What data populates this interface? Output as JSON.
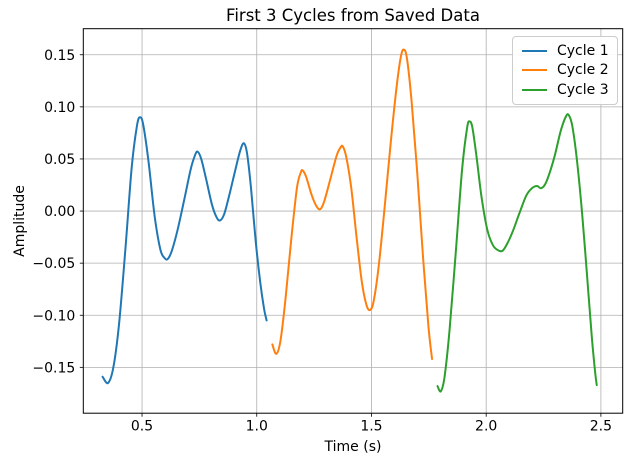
{
  "chart_data": {
    "type": "line",
    "title": "First 3 Cycles from Saved Data",
    "xlabel": "Time (s)",
    "ylabel": "Amplitude",
    "xlim": [
      0.244,
      2.595
    ],
    "ylim": [
      -0.194,
      0.175
    ],
    "xticks": [
      0.5,
      1.0,
      1.5,
      2.0,
      2.5
    ],
    "yticks": [
      -0.15,
      -0.1,
      -0.05,
      0.0,
      0.05,
      0.1,
      0.15
    ],
    "grid": true,
    "grid_color": "#b0b0b0",
    "spine_color": "#000000",
    "legend_position": "upper right",
    "series": [
      {
        "name": "Cycle 1",
        "color": "#1f77b4",
        "points": [
          [
            0.328,
            -0.159
          ],
          [
            0.352,
            -0.165
          ],
          [
            0.375,
            -0.15
          ],
          [
            0.4,
            -0.108
          ],
          [
            0.428,
            -0.035
          ],
          [
            0.455,
            0.042
          ],
          [
            0.478,
            0.082
          ],
          [
            0.491,
            0.09
          ],
          [
            0.505,
            0.083
          ],
          [
            0.528,
            0.048
          ],
          [
            0.555,
            -0.005
          ],
          [
            0.58,
            -0.037
          ],
          [
            0.598,
            -0.045
          ],
          [
            0.612,
            -0.046
          ],
          [
            0.63,
            -0.038
          ],
          [
            0.655,
            -0.018
          ],
          [
            0.685,
            0.012
          ],
          [
            0.712,
            0.04
          ],
          [
            0.73,
            0.053
          ],
          [
            0.742,
            0.057
          ],
          [
            0.758,
            0.05
          ],
          [
            0.78,
            0.03
          ],
          [
            0.805,
            0.006
          ],
          [
            0.825,
            -0.006
          ],
          [
            0.84,
            -0.009
          ],
          [
            0.858,
            -0.003
          ],
          [
            0.88,
            0.015
          ],
          [
            0.905,
            0.038
          ],
          [
            0.928,
            0.058
          ],
          [
            0.944,
            0.065
          ],
          [
            0.958,
            0.055
          ],
          [
            0.975,
            0.022
          ],
          [
            0.995,
            -0.028
          ],
          [
            1.015,
            -0.068
          ],
          [
            1.032,
            -0.094
          ],
          [
            1.043,
            -0.105
          ]
        ]
      },
      {
        "name": "Cycle 2",
        "color": "#ff7f0e",
        "points": [
          [
            1.068,
            -0.128
          ],
          [
            1.085,
            -0.137
          ],
          [
            1.103,
            -0.125
          ],
          [
            1.125,
            -0.085
          ],
          [
            1.15,
            -0.028
          ],
          [
            1.175,
            0.022
          ],
          [
            1.192,
            0.037
          ],
          [
            1.2,
            0.039
          ],
          [
            1.215,
            0.033
          ],
          [
            1.24,
            0.015
          ],
          [
            1.262,
            0.004
          ],
          [
            1.278,
            0.002
          ],
          [
            1.295,
            0.01
          ],
          [
            1.32,
            0.03
          ],
          [
            1.348,
            0.053
          ],
          [
            1.365,
            0.061
          ],
          [
            1.375,
            0.062
          ],
          [
            1.39,
            0.052
          ],
          [
            1.412,
            0.022
          ],
          [
            1.435,
            -0.025
          ],
          [
            1.458,
            -0.068
          ],
          [
            1.478,
            -0.09
          ],
          [
            1.494,
            -0.095
          ],
          [
            1.51,
            -0.086
          ],
          [
            1.532,
            -0.052
          ],
          [
            1.558,
            0.005
          ],
          [
            1.585,
            0.068
          ],
          [
            1.61,
            0.12
          ],
          [
            1.628,
            0.148
          ],
          [
            1.641,
            0.155
          ],
          [
            1.655,
            0.146
          ],
          [
            1.675,
            0.105
          ],
          [
            1.7,
            0.035
          ],
          [
            1.725,
            -0.045
          ],
          [
            1.748,
            -0.11
          ],
          [
            1.764,
            -0.142
          ]
        ]
      },
      {
        "name": "Cycle 3",
        "color": "#2ca02c",
        "points": [
          [
            1.788,
            -0.168
          ],
          [
            1.802,
            -0.173
          ],
          [
            1.818,
            -0.16
          ],
          [
            1.84,
            -0.115
          ],
          [
            1.868,
            -0.038
          ],
          [
            1.895,
            0.04
          ],
          [
            1.917,
            0.08
          ],
          [
            1.928,
            0.086
          ],
          [
            1.94,
            0.08
          ],
          [
            1.958,
            0.052
          ],
          [
            1.98,
            0.013
          ],
          [
            2.005,
            -0.018
          ],
          [
            2.03,
            -0.033
          ],
          [
            2.055,
            -0.038
          ],
          [
            2.072,
            -0.038
          ],
          [
            2.09,
            -0.032
          ],
          [
            2.115,
            -0.02
          ],
          [
            2.145,
            -0.002
          ],
          [
            2.175,
            0.015
          ],
          [
            2.2,
            0.022
          ],
          [
            2.222,
            0.024
          ],
          [
            2.24,
            0.022
          ],
          [
            2.262,
            0.028
          ],
          [
            2.295,
            0.05
          ],
          [
            2.325,
            0.077
          ],
          [
            2.348,
            0.091
          ],
          [
            2.36,
            0.092
          ],
          [
            2.375,
            0.082
          ],
          [
            2.395,
            0.05
          ],
          [
            2.418,
            -0.002
          ],
          [
            2.44,
            -0.063
          ],
          [
            2.46,
            -0.12
          ],
          [
            2.475,
            -0.155
          ],
          [
            2.482,
            -0.167
          ]
        ]
      }
    ]
  }
}
